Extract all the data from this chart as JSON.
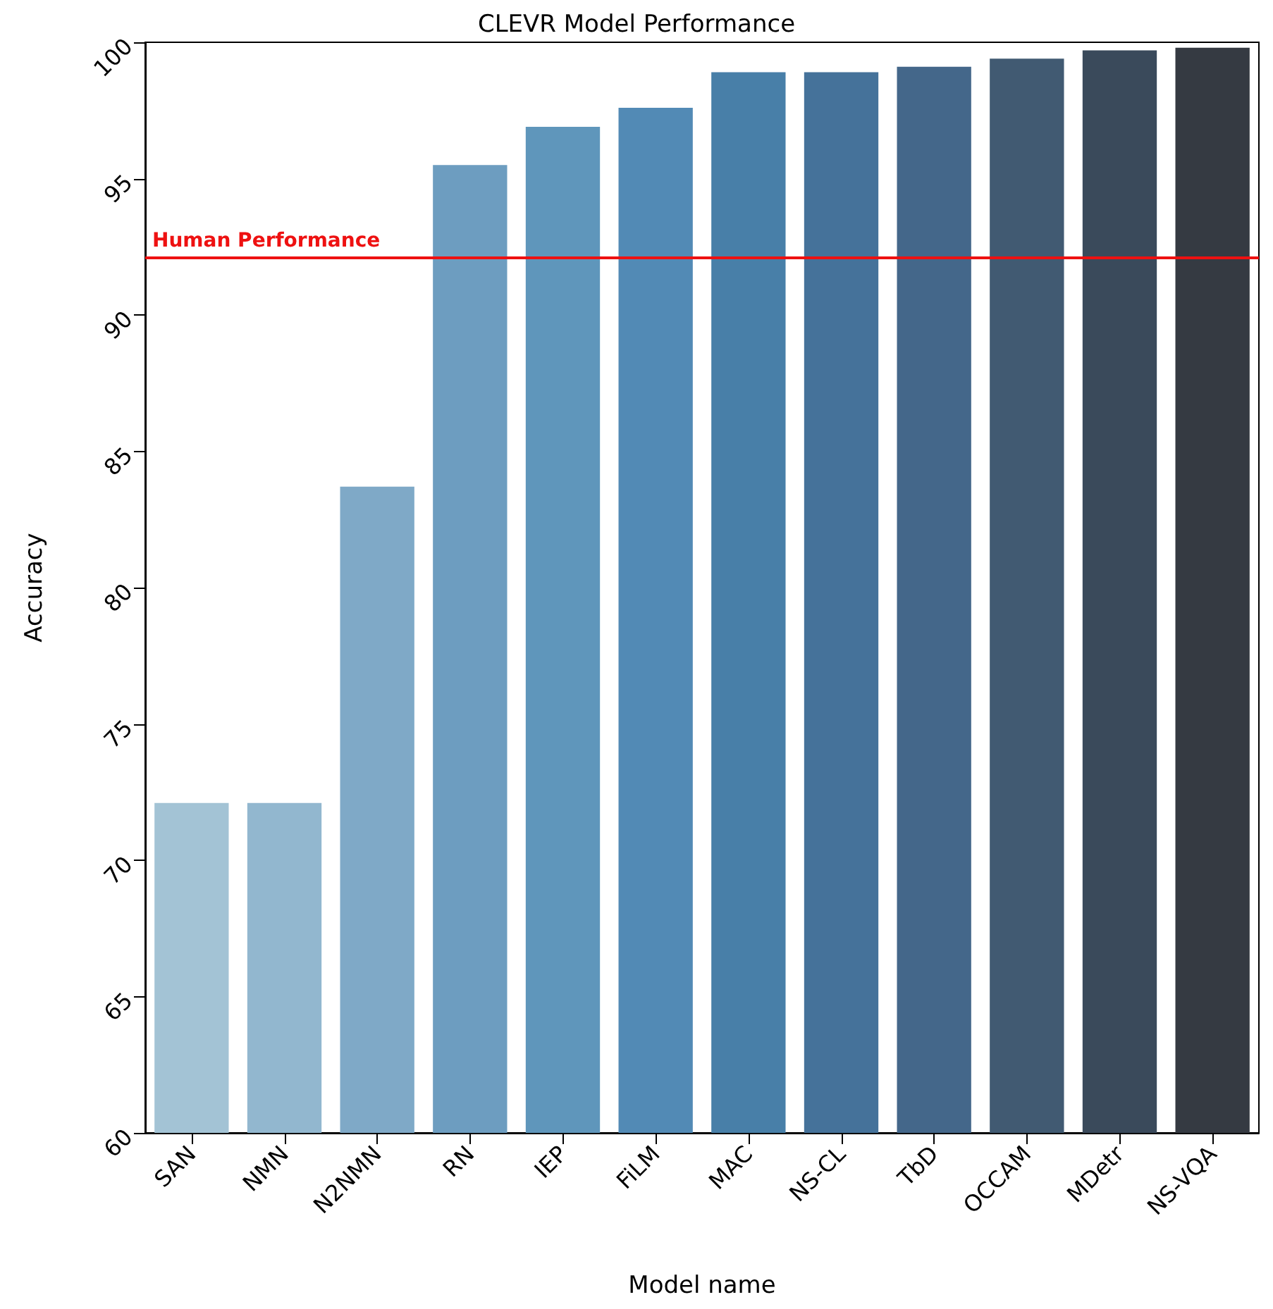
{
  "chart_data": {
    "type": "bar",
    "title": "CLEVR Model Performance",
    "xlabel": "Model name",
    "ylabel": "Accuracy",
    "categories": [
      "SAN",
      "NMN",
      "N2NMN",
      "RN",
      "IEP",
      "FiLM",
      "MAC",
      "NS-CL",
      "TbD",
      "OCCAM",
      "MDetr",
      "NS-VQA"
    ],
    "values": [
      72.1,
      72.1,
      83.7,
      95.5,
      96.9,
      97.6,
      98.9,
      98.9,
      99.1,
      99.4,
      99.7,
      99.8
    ],
    "colors": [
      "#a3c3d5",
      "#92b7cf",
      "#7fa9c7",
      "#6d9dc0",
      "#5f96bb",
      "#528ab5",
      "#487fa8",
      "#45729a",
      "#44678a",
      "#415a72",
      "#3a4a5b",
      "#353a42"
    ],
    "ylim": [
      60,
      100
    ],
    "yticks": [
      60,
      65,
      70,
      75,
      80,
      85,
      90,
      95,
      100
    ],
    "grid": false,
    "ref_lines": [
      {
        "axis": "y",
        "value": 92.1,
        "label": "Human Performance",
        "color": "#ee1111"
      }
    ]
  }
}
